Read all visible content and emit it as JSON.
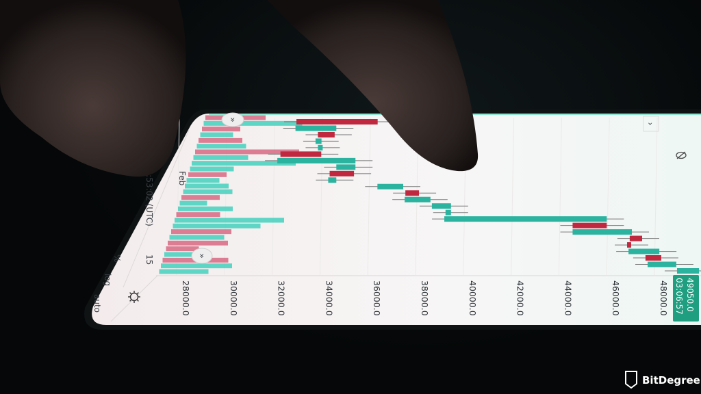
{
  "colors": {
    "up": "#2bb3a0",
    "down": "#c0283f",
    "volume_up": "#4fd1c0",
    "volume_down": "#d97088",
    "screen": "#f6f3f3",
    "price_tag": "#1f9e80"
  },
  "chart_data": {
    "type": "candlestick",
    "orientation": "rotated (price axis horizontal)",
    "price_ticks": [
      "28000.0",
      "30000.0",
      "32000.0",
      "34000.0",
      "36000.0",
      "38000.0",
      "40000.0",
      "42000.0",
      "44000.0",
      "46000.0",
      "48000.0"
    ],
    "candles": [
      {
        "low": 32900,
        "high": 36300,
        "dir": "down"
      },
      {
        "low": 32860,
        "high": 34570,
        "dir": "up"
      },
      {
        "low": 33800,
        "high": 34500,
        "dir": "down"
      },
      {
        "low": 33700,
        "high": 33950,
        "dir": "up"
      },
      {
        "low": 33800,
        "high": 34000,
        "dir": "up"
      },
      {
        "low": 32230,
        "high": 33940,
        "dir": "down"
      },
      {
        "low": 32100,
        "high": 35370,
        "dir": "up"
      },
      {
        "low": 34570,
        "high": 35370,
        "dir": "up"
      },
      {
        "low": 34290,
        "high": 35310,
        "dir": "down"
      },
      {
        "low": 34230,
        "high": 34570,
        "dir": "up"
      },
      {
        "low": 36290,
        "high": 37370,
        "dir": "up"
      },
      {
        "low": 37460,
        "high": 38030,
        "dir": "down"
      },
      {
        "low": 37430,
        "high": 38510,
        "dir": "up"
      },
      {
        "low": 38570,
        "high": 39370,
        "dir": "up"
      },
      {
        "low": 39140,
        "high": 39370,
        "dir": "up"
      },
      {
        "low": 39090,
        "high": 45890,
        "dir": "up"
      },
      {
        "low": 44460,
        "high": 45890,
        "dir": "down"
      },
      {
        "low": 44460,
        "high": 46940,
        "dir": "up"
      },
      {
        "low": 46850,
        "high": 47370,
        "dir": "down"
      },
      {
        "low": 46740,
        "high": 46910,
        "dir": "down"
      },
      {
        "low": 46800,
        "high": 48090,
        "dir": "up"
      },
      {
        "low": 47510,
        "high": 48170,
        "dir": "down"
      },
      {
        "low": 47600,
        "high": 48800,
        "dir": "up"
      },
      {
        "low": 48830,
        "high": 49750,
        "dir": "up"
      }
    ],
    "volume_profile": [
      {
        "value": 0.55,
        "dir": "down"
      },
      {
        "value": 0.9,
        "dir": "up"
      },
      {
        "value": 0.35,
        "dir": "down"
      },
      {
        "value": 0.3,
        "dir": "up"
      },
      {
        "value": 0.4,
        "dir": "down"
      },
      {
        "value": 0.45,
        "dir": "up"
      },
      {
        "value": 0.95,
        "dir": "down"
      },
      {
        "value": 0.5,
        "dir": "up"
      },
      {
        "value": 0.95,
        "dir": "up"
      },
      {
        "value": 0.4,
        "dir": "up"
      },
      {
        "value": 0.35,
        "dir": "down"
      },
      {
        "value": 0.3,
        "dir": "up"
      },
      {
        "value": 0.4,
        "dir": "up"
      },
      {
        "value": 0.45,
        "dir": "up"
      },
      {
        "value": 0.35,
        "dir": "down"
      },
      {
        "value": 0.25,
        "dir": "up"
      },
      {
        "value": 0.5,
        "dir": "up"
      },
      {
        "value": 0.4,
        "dir": "down"
      },
      {
        "value": 1.0,
        "dir": "up"
      },
      {
        "value": 0.8,
        "dir": "up"
      },
      {
        "value": 0.55,
        "dir": "down"
      },
      {
        "value": 0.5,
        "dir": "up"
      },
      {
        "value": 0.55,
        "dir": "down"
      },
      {
        "value": 0.3,
        "dir": "down"
      },
      {
        "value": 0.3,
        "dir": "up"
      },
      {
        "value": 0.6,
        "dir": "down"
      },
      {
        "value": 0.65,
        "dir": "up"
      },
      {
        "value": 0.45,
        "dir": "up"
      }
    ],
    "last_price": "49050.0",
    "countdown": "03:06:57"
  },
  "left_panel": {
    "month_label": "Feb",
    "time_label": "20:53:02 (UTC)",
    "volume_label": "15",
    "percent_button": "%",
    "log_button": "log",
    "auto_button": "auto"
  },
  "watermark": "BitDegree"
}
